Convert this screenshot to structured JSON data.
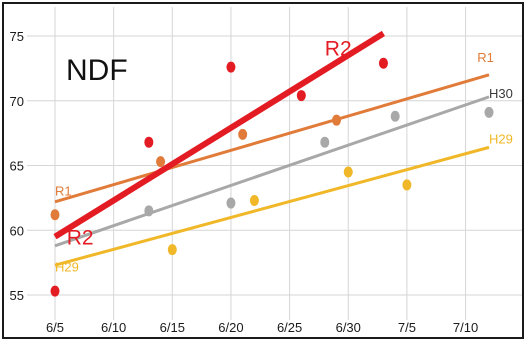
{
  "chart_data": {
    "type": "scatter",
    "title": "NDF",
    "xlabel": "",
    "ylabel": "",
    "x_ticks": [
      "6/5",
      "6/10",
      "6/15",
      "6/20",
      "6/25",
      "6/30",
      "7/5",
      "7/10"
    ],
    "y_ticks": [
      "55",
      "60",
      "65",
      "70",
      "75"
    ],
    "ylim": [
      55,
      75
    ],
    "grid": true,
    "series": [
      {
        "name": "R2",
        "color": "#e31b23",
        "points": [
          {
            "x": "6/5",
            "y": 55.3
          },
          {
            "x": "6/13",
            "y": 66.8
          },
          {
            "x": "6/20",
            "y": 72.6
          },
          {
            "x": "6/26",
            "y": 70.4
          },
          {
            "x": "7/3",
            "y": 72.9
          }
        ],
        "trend": {
          "from": {
            "x": "6/5",
            "y": 59.5
          },
          "to": {
            "x": "7/3",
            "y": 75.2
          }
        }
      },
      {
        "name": "R1",
        "color": "#e07b39",
        "points": [
          {
            "x": "6/5",
            "y": 61.2
          },
          {
            "x": "6/14",
            "y": 65.3
          },
          {
            "x": "6/21",
            "y": 67.4
          },
          {
            "x": "6/29",
            "y": 68.5
          }
        ],
        "trend": {
          "from": {
            "x": "6/5",
            "y": 62.2
          },
          "to": {
            "x": "7/12",
            "y": 72
          }
        }
      },
      {
        "name": "H30",
        "color": "#a8a8a8",
        "points": [
          {
            "x": "6/13",
            "y": 61.5
          },
          {
            "x": "6/20",
            "y": 62.1
          },
          {
            "x": "6/28",
            "y": 66.8
          },
          {
            "x": "7/4",
            "y": 68.8
          },
          {
            "x": "7/12",
            "y": 69.1
          }
        ],
        "trend": {
          "from": {
            "x": "6/5",
            "y": 58.8
          },
          "to": {
            "x": "7/12",
            "y": 70.3
          }
        }
      },
      {
        "name": "H29",
        "color": "#f0b828",
        "points": [
          {
            "x": "6/15",
            "y": 58.5
          },
          {
            "x": "6/22",
            "y": 62.3
          },
          {
            "x": "6/30",
            "y": 64.5
          },
          {
            "x": "7/5",
            "y": 63.5
          }
        ],
        "trend": {
          "from": {
            "x": "6/5",
            "y": 57.3
          },
          "to": {
            "x": "7/12",
            "y": 66.4
          }
        }
      }
    ],
    "line_labels": [
      {
        "text": "R2",
        "series": "R2",
        "color": "#e31b23",
        "at": {
          "x": "6/28",
          "y": 73.5
        },
        "size": "large"
      },
      {
        "text": "R2",
        "series": "R2",
        "color": "#e31b23",
        "at": {
          "x": "6/6",
          "y": 58.9
        },
        "size": "large"
      },
      {
        "text": "R1",
        "series": "R1",
        "color": "#e07b39",
        "at": {
          "x": "7/11",
          "y": 73
        },
        "size": "small"
      },
      {
        "text": "R1",
        "series": "R1",
        "color": "#e07b39",
        "at": {
          "x": "6/5",
          "y": 62.7
        },
        "size": "small"
      },
      {
        "text": "H30",
        "series": "H30",
        "color": "#3a3a3a",
        "at": {
          "x": "7/12",
          "y": 70.2
        },
        "size": "small"
      },
      {
        "text": "H29",
        "series": "H29",
        "color": "#f0b828",
        "at": {
          "x": "7/12",
          "y": 66.7
        },
        "size": "small"
      },
      {
        "text": "H29",
        "series": "H29",
        "color": "#f0b828",
        "at": {
          "x": "6/5",
          "y": 56.8
        },
        "size": "small"
      }
    ]
  }
}
